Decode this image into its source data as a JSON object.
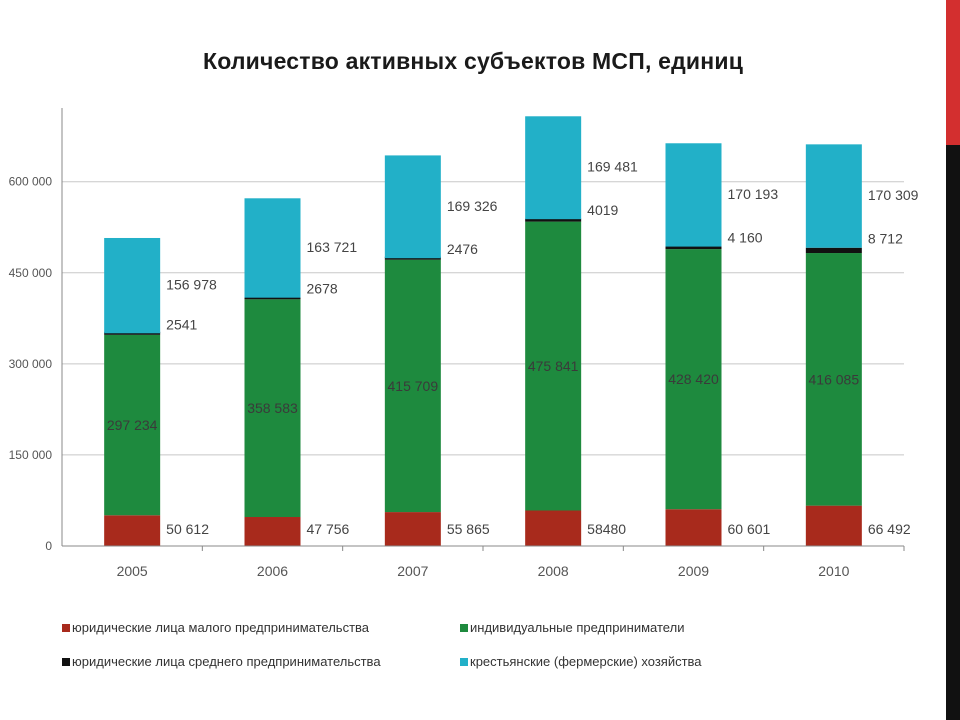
{
  "chart_data": {
    "type": "bar",
    "stacked": true,
    "title": "Количество активных субъектов МСП, единиц",
    "categories": [
      "2005",
      "2006",
      "2007",
      "2008",
      "2009",
      "2010"
    ],
    "series": [
      {
        "name": "юридические лица малого предпринимательства",
        "color": "#a82a1c",
        "values": [
          50612,
          47756,
          55865,
          58480,
          60601,
          66492
        ],
        "labels": [
          "50 612",
          "47 756",
          "55 865",
          "58480",
          "60 601",
          "66 492"
        ]
      },
      {
        "name": "индивидуальные предприниматели",
        "color": "#1e8a3e",
        "values": [
          297234,
          358583,
          415709,
          475841,
          428420,
          416085
        ],
        "labels": [
          "297 234",
          "358 583",
          "415 709",
          "475 841",
          "428 420",
          "416 085"
        ]
      },
      {
        "name": "юридические лица среднего предпринимательства",
        "color": "#111111",
        "values": [
          2541,
          2678,
          2476,
          4019,
          4160,
          8712
        ],
        "labels": [
          "2541",
          "2678",
          "2476",
          "4019",
          "4 160",
          "8 712"
        ]
      },
      {
        "name": "крестьянские (фермерские) хозяйства",
        "color": "#22b0c8",
        "values": [
          156978,
          163721,
          169326,
          169481,
          170193,
          170309
        ],
        "labels": [
          "156 978",
          "163 721",
          "169 326",
          "169 481",
          "170 193",
          "170 309"
        ]
      }
    ],
    "yticks": [
      "0",
      "150 000",
      "300 000",
      "450 000",
      "600 000"
    ],
    "ylim": [
      0,
      705000
    ],
    "grid": true,
    "legend_position": "bottom"
  }
}
